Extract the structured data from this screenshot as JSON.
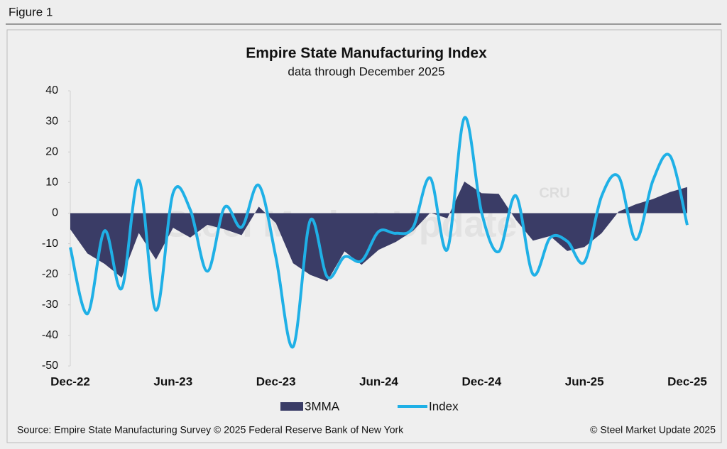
{
  "figure_label": "Figure 1",
  "chart_data": {
    "type": "line",
    "title": "Empire State Manufacturing Index",
    "subtitle": "data through December 2025",
    "categories": [
      "Dec-22",
      null,
      null,
      null,
      null,
      null,
      "Jun-23",
      null,
      null,
      null,
      null,
      null,
      "Dec-23",
      null,
      null,
      null,
      null,
      null,
      "Jun-24",
      null,
      null,
      null,
      null,
      null,
      "Dec-24",
      null,
      null,
      null,
      null,
      null,
      "Jun-25",
      null,
      null,
      null,
      null,
      null,
      "Dec-25"
    ],
    "series": [
      {
        "name": "3MMA",
        "color": "#3a3c66",
        "style": "area",
        "values": [
          -5.3,
          -13.2,
          -16.6,
          -21.1,
          -6.5,
          -15.2,
          -4.8,
          -8.0,
          -3.8,
          -5.3,
          -7.2,
          2.1,
          -3.3,
          -16.4,
          -20.2,
          -22.3,
          -12.5,
          -16.9,
          -12.0,
          -9.4,
          -5.8,
          0.1,
          -1.7,
          10.3,
          6.5,
          6.3,
          -2.2,
          -9.0,
          -7.5,
          -12.4,
          -11.1,
          -6.6,
          0.5,
          2.9,
          4.6,
          6.9,
          8.5
        ]
      },
      {
        "name": "Index",
        "color": "#1fb0e6",
        "style": "line",
        "values": [
          -11.2,
          -32.9,
          -5.8,
          -24.6,
          10.8,
          -31.8,
          6.6,
          1.1,
          -19.0,
          1.9,
          -4.6,
          9.1,
          -14.5,
          -43.7,
          -2.4,
          -20.9,
          -14.3,
          -15.6,
          -6.0,
          -6.6,
          -4.7,
          11.5,
          -11.9,
          31.2,
          0.2,
          -12.6,
          5.7,
          -20.0,
          -8.1,
          -9.2,
          -16.0,
          5.5,
          11.9,
          -8.7,
          10.7,
          18.7,
          -3.9
        ]
      }
    ],
    "ylim": [
      -50,
      40
    ],
    "yticks": [
      -50,
      -40,
      -30,
      -20,
      -10,
      0,
      10,
      20,
      30,
      40
    ],
    "grid": false,
    "legend": "bottom",
    "watermark": "Steel Market Update",
    "logo": "CRU",
    "source": "Source: Empire State Manufacturing Survey © 2025 Federal Reserve Bank of New York",
    "copyright": "© Steel Market Update 2025"
  }
}
